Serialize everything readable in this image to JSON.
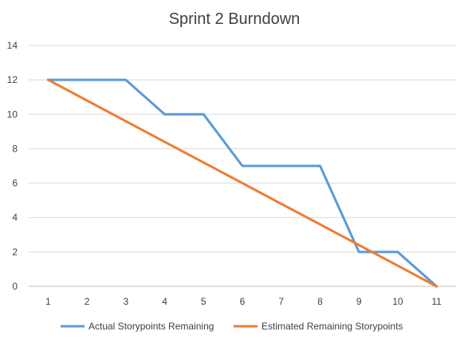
{
  "chart_data": {
    "type": "line",
    "title": "Sprint 2 Burndown",
    "xlabel": "",
    "ylabel": "",
    "x": [
      1,
      2,
      3,
      4,
      5,
      6,
      7,
      8,
      9,
      10,
      11
    ],
    "ylim": [
      0,
      14
    ],
    "yticks": [
      0,
      2,
      4,
      6,
      8,
      10,
      12,
      14
    ],
    "grid": true,
    "legend_position": "bottom",
    "series": [
      {
        "name": "Actual Storypoints Remaining",
        "color": "#5b9bd5",
        "values": [
          12,
          12,
          12,
          10,
          10,
          7,
          7,
          7,
          2,
          2,
          0
        ]
      },
      {
        "name": "Estimated Remaining Storypoints",
        "color": "#ed7d31",
        "values": [
          12,
          10.8,
          9.6,
          8.4,
          7.2,
          6,
          4.8,
          3.6,
          2.4,
          1.2,
          0
        ]
      }
    ]
  }
}
